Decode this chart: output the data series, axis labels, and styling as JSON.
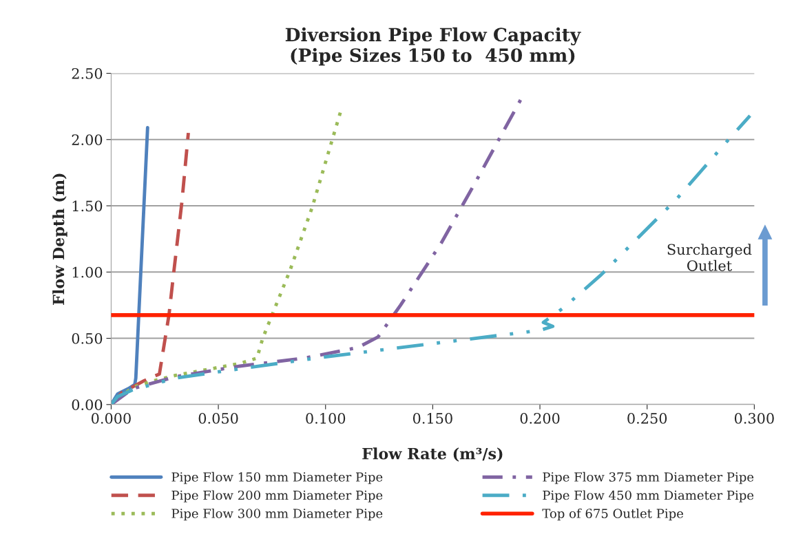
{
  "chart_data": {
    "type": "line",
    "title": "Diversion Pipe Flow Capacity\n(Pipe Sizes 150 to  450 mm)",
    "xlabel": "Flow Rate (m³/s)",
    "ylabel": "Flow Depth (m)",
    "xlim": [
      0,
      0.3
    ],
    "ylim": [
      0,
      2.5
    ],
    "xticks": [
      {
        "value": 0,
        "label": "0.000"
      },
      {
        "value": 0.05,
        "label": "0.050"
      },
      {
        "value": 0.1,
        "label": "0.100"
      },
      {
        "value": 0.15,
        "label": "0.150"
      },
      {
        "value": 0.2,
        "label": "0.200"
      },
      {
        "value": 0.25,
        "label": "0.250"
      },
      {
        "value": 0.3,
        "label": "0.300"
      }
    ],
    "yticks": [
      {
        "value": 0,
        "label": "0.00"
      },
      {
        "value": 0.5,
        "label": "0.50"
      },
      {
        "value": 1,
        "label": "1.00"
      },
      {
        "value": 1.5,
        "label": "1.50"
      },
      {
        "value": 2,
        "label": "2.00"
      },
      {
        "value": 2.5,
        "label": "2.50"
      }
    ],
    "grid": "y",
    "legend": "bottom",
    "marker": "none",
    "series": [
      {
        "name": "Pipe Flow 150 mm Diameter Pipe",
        "color": "#4f81bd",
        "line_style": "solid",
        "x": [
          0,
          0.003,
          0.008,
          0.011,
          0.0115,
          0.017
        ],
        "values": [
          0,
          0.08,
          0.12,
          0.15,
          0.2,
          2.09
        ]
      },
      {
        "name": "Pipe Flow 200 mm Diameter Pipe",
        "color": "#c0504d",
        "line_style": "dashed",
        "x": [
          0,
          0.005,
          0.012,
          0.0154,
          0.0225,
          0.0247,
          0.027,
          0.029,
          0.033,
          0.036
        ],
        "values": [
          0,
          0.09,
          0.15,
          0.18,
          0.23,
          0.45,
          0.68,
          0.97,
          1.53,
          2.05
        ]
      },
      {
        "name": "Pipe Flow 300 mm Diameter Pipe",
        "color": "#9bbb59",
        "line_style": "dotted",
        "x": [
          0,
          0.01,
          0.02,
          0.03,
          0.04,
          0.05,
          0.06,
          0.068,
          0.0707,
          0.0836,
          0.0938,
          0.107
        ],
        "values": [
          0,
          0.13,
          0.18,
          0.22,
          0.25,
          0.28,
          0.31,
          0.35,
          0.5,
          1.02,
          1.49,
          2.21
        ]
      },
      {
        "name": "Pipe Flow 375 mm Diameter Pipe",
        "color": "#8064a2",
        "line_style": "dashdot",
        "x": [
          0,
          0.01,
          0.03,
          0.06,
          0.09,
          0.115,
          0.1245,
          0.135,
          0.154,
          0.17,
          0.191
        ],
        "values": [
          0,
          0.12,
          0.21,
          0.29,
          0.35,
          0.43,
          0.51,
          0.75,
          1.22,
          1.68,
          2.3
        ]
      },
      {
        "name": "Pipe Flow 450 mm Diameter Pipe",
        "color": "#4bacc6",
        "line_style": "dashdotdot",
        "x": [
          0,
          0.003,
          0.01,
          0.03,
          0.06,
          0.1,
          0.15,
          0.2,
          0.206,
          0.2016,
          0.211,
          0.2286,
          0.2637,
          0.288,
          0.298
        ],
        "values": [
          0,
          0.06,
          0.11,
          0.2,
          0.27,
          0.36,
          0.46,
          0.56,
          0.59,
          0.62,
          0.73,
          0.98,
          1.55,
          2.0,
          2.18
        ]
      }
    ],
    "ref_lines": [
      {
        "axis": "y",
        "value": 0.675,
        "label": "Top of 675 Outlet Pipe",
        "color": "#ff2200",
        "line_style": "solid"
      }
    ],
    "annotations": [
      "Surcharged\nOutlet"
    ]
  }
}
